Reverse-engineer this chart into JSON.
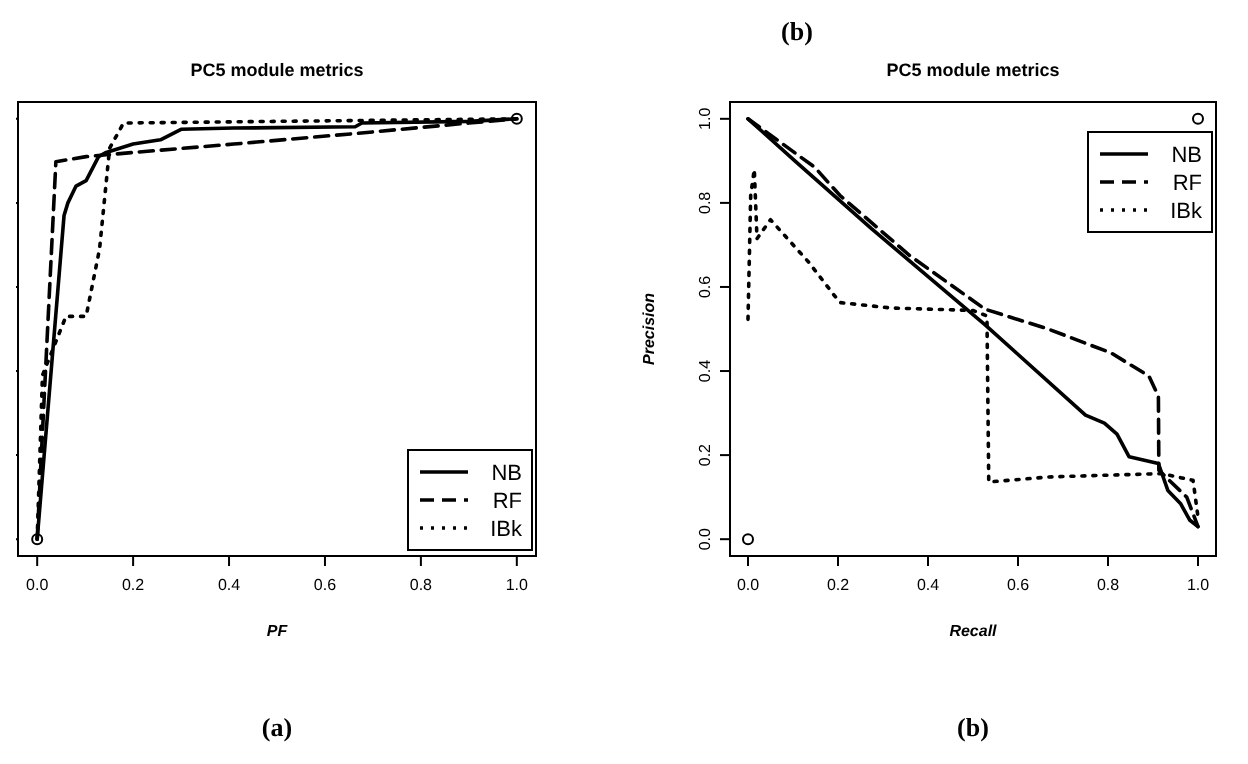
{
  "chart_data": [
    {
      "type": "line",
      "title": "PC5 module metrics",
      "xlabel": "PF",
      "annotations": [
        "(a)"
      ],
      "legend": "bottom right",
      "tick_labels": "x",
      "xlim": [
        -0.04,
        1.04
      ],
      "ylim": [
        -0.04,
        1.04
      ],
      "xticks": [
        {
          "value": 0,
          "label": "0.0"
        },
        {
          "value": 0.2,
          "label": "0.2"
        },
        {
          "value": 0.4,
          "label": "0.4"
        },
        {
          "value": 0.6,
          "label": "0.6"
        },
        {
          "value": 0.8,
          "label": "0.8"
        },
        {
          "value": 1,
          "label": "1.0"
        }
      ],
      "yticks": [
        {
          "value": 0,
          "label": null
        },
        {
          "value": 0.2,
          "label": null
        },
        {
          "value": 0.4,
          "label": null
        },
        {
          "value": 0.6,
          "label": null
        },
        {
          "value": 0.8,
          "label": null
        },
        {
          "value": 1,
          "label": null
        }
      ],
      "series": [
        {
          "name": "NB",
          "color": "#000000",
          "line_style": "solid",
          "x": [
            0,
            0.056,
            0.064,
            0.081,
            0.102,
            0.128,
            0.144,
            0.2,
            0.257,
            0.3,
            0.41,
            0.663,
            0.677,
            0.9,
            1
          ],
          "values": [
            0,
            0.77,
            0.8,
            0.84,
            0.853,
            0.91,
            0.92,
            0.94,
            0.95,
            0.975,
            0.978,
            0.981,
            0.99,
            0.994,
            1
          ]
        },
        {
          "name": "RF",
          "color": "#000000",
          "line_style": "dashed",
          "x": [
            0,
            0.039,
            0.102,
            0.2,
            0.41,
            0.663,
            0.9,
            1
          ],
          "values": [
            0,
            0.898,
            0.91,
            0.92,
            0.94,
            0.965,
            0.99,
            1
          ]
        },
        {
          "name": "IBk",
          "color": "#000000",
          "line_style": "dotted",
          "x": [
            0,
            0.011,
            0.06,
            0.102,
            0.13,
            0.151,
            0.18,
            1
          ],
          "values": [
            0,
            0.39,
            0.53,
            0.53,
            0.69,
            0.93,
            0.99,
            1
          ]
        },
        {
          "type": "scatter",
          "color": "#000000",
          "marker": "circle",
          "x": [
            0,
            1
          ],
          "values": [
            0,
            1
          ]
        }
      ]
    },
    {
      "type": "line",
      "title": "PC5 module metrics",
      "xlabel": "Recall",
      "ylabel": "Precision",
      "annotations": [
        "(b)",
        "(b)"
      ],
      "legend": "top right",
      "xlim": [
        -0.04,
        1.04
      ],
      "ylim": [
        -0.04,
        1.04
      ],
      "xticks": [
        {
          "value": 0,
          "label": "0.0"
        },
        {
          "value": 0.2,
          "label": "0.2"
        },
        {
          "value": 0.4,
          "label": "0.4"
        },
        {
          "value": 0.6,
          "label": "0.6"
        },
        {
          "value": 0.8,
          "label": "0.8"
        },
        {
          "value": 1,
          "label": "1.0"
        }
      ],
      "yticks": [
        {
          "value": 0,
          "label": "0.0"
        },
        {
          "value": 0.2,
          "label": "0.2"
        },
        {
          "value": 0.4,
          "label": "0.4"
        },
        {
          "value": 0.6,
          "label": "0.6"
        },
        {
          "value": 0.8,
          "label": "0.8"
        },
        {
          "value": 1,
          "label": "1.0"
        }
      ],
      "series": [
        {
          "name": "NB",
          "color": "#000000",
          "line_style": "solid",
          "x": [
            0,
            0.106,
            0.275,
            0.527,
            0.75,
            0.792,
            0.82,
            0.847,
            0.912,
            0.933,
            0.961,
            0.982,
            1
          ],
          "values": [
            1,
            0.898,
            0.738,
            0.51,
            0.295,
            0.276,
            0.25,
            0.196,
            0.18,
            0.116,
            0.085,
            0.045,
            0.03
          ]
        },
        {
          "name": "RF",
          "color": "#000000",
          "line_style": "dashed",
          "x": [
            0,
            0.148,
            0.204,
            0.359,
            0.527,
            0.667,
            0.807,
            0.891,
            0.912,
            0.913,
            0.975,
            1
          ],
          "values": [
            1,
            0.885,
            0.818,
            0.675,
            0.547,
            0.5,
            0.443,
            0.388,
            0.34,
            0.164,
            0.1,
            0.03
          ]
        },
        {
          "name": "IBk",
          "color": "#000000",
          "line_style": "dotted",
          "x": [
            0,
            0.006,
            0.014,
            0.02,
            0.05,
            0.134,
            0.204,
            0.317,
            0.5,
            0.531,
            0.535,
            0.667,
            0.919,
            0.989,
            1
          ],
          "values": [
            0.523,
            0.818,
            0.88,
            0.715,
            0.76,
            0.66,
            0.563,
            0.55,
            0.544,
            0.531,
            0.136,
            0.148,
            0.156,
            0.14,
            0.053
          ]
        },
        {
          "type": "scatter",
          "color": "#000000",
          "marker": "circle",
          "x": [
            0,
            1
          ],
          "values": [
            0,
            1
          ]
        }
      ]
    }
  ]
}
